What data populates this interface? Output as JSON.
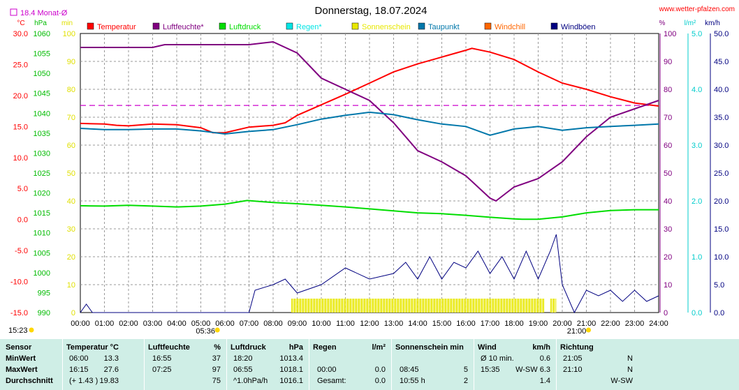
{
  "header": {
    "title": "Donnerstag, 18.07.2024",
    "site": "www.wetter-pfalzen.com",
    "monthly_avg": "18.4 Monat-Ø"
  },
  "axis_units": {
    "temp": "°C",
    "pressure": "hPa",
    "sun": "min",
    "humidity": "%",
    "rain": "l/m²",
    "wind": "km/h"
  },
  "legend": [
    {
      "name": "Temperatur",
      "color": "#ff0000"
    },
    {
      "name": "Luftfeuchte*",
      "color": "#800080"
    },
    {
      "name": "Luftdruck",
      "color": "#00dd00"
    },
    {
      "name": "Regen*",
      "color": "#00e5e5"
    },
    {
      "name": "Sonnenschein",
      "color": "#e8e800"
    },
    {
      "name": "Taupunkt",
      "color": "#0077aa"
    },
    {
      "name": "Windchill",
      "color": "#ff6600"
    },
    {
      "name": "Windböen",
      "color": "#000080"
    }
  ],
  "sun_events": {
    "sunrise": "05:36",
    "sunset": "21:00",
    "now": "15:23"
  },
  "chart_data": {
    "type": "line",
    "title": "Donnerstag, 18.07.2024",
    "x_ticks": [
      "00:00",
      "01:00",
      "02:00",
      "03:00",
      "04:00",
      "05:00",
      "06:00",
      "07:00",
      "08:00",
      "09:00",
      "10:00",
      "11:00",
      "12:00",
      "13:00",
      "14:00",
      "15:00",
      "16:00",
      "17:00",
      "18:00",
      "19:00",
      "20:00",
      "21:00",
      "22:00",
      "23:00",
      "24:00"
    ],
    "axes": {
      "temp": {
        "label": "°C",
        "range": [
          -15,
          30
        ],
        "ticks": [
          "30.0",
          "25.0",
          "20.0",
          "15.0",
          "10.0",
          "5.0",
          "0.0",
          "-5.0",
          "-10.0",
          "-15.0"
        ]
      },
      "pressure": {
        "label": "hPa",
        "range": [
          990,
          1060
        ],
        "ticks": [
          "1060",
          "1055",
          "1050",
          "1045",
          "1040",
          "1035",
          "1030",
          "1025",
          "1020",
          "1015",
          "1010",
          "1005",
          "1000",
          "995",
          "990"
        ]
      },
      "sun": {
        "label": "min",
        "range": [
          0,
          100
        ],
        "ticks": [
          "100",
          "90",
          "80",
          "70",
          "60",
          "50",
          "40",
          "30",
          "20",
          "10",
          "0"
        ]
      },
      "humidity": {
        "label": "%",
        "range": [
          0,
          100
        ],
        "ticks": [
          "100",
          "90",
          "80",
          "70",
          "60",
          "50",
          "40",
          "30",
          "20",
          "10",
          "0"
        ]
      },
      "rain": {
        "label": "l/m²",
        "range": [
          0,
          5
        ],
        "ticks": [
          "5.0",
          "4.0",
          "3.0",
          "2.0",
          "1.0",
          "0.0"
        ]
      },
      "wind": {
        "label": "km/h",
        "range": [
          0,
          50
        ],
        "ticks": [
          "50.0",
          "45.0",
          "40.0",
          "35.0",
          "30.0",
          "25.0",
          "20.0",
          "15.0",
          "10.0",
          "5.0",
          "0.0"
        ]
      }
    },
    "reference_line": {
      "name": "18.4 Monat-Ø",
      "value": 18.4,
      "axis": "temp"
    },
    "series": [
      {
        "name": "Temperatur",
        "axis": "temp",
        "x": [
          0,
          1,
          1.5,
          2,
          3,
          4,
          5,
          5.5,
          6,
          7,
          8,
          8.5,
          9,
          10,
          11,
          12,
          13,
          14,
          15,
          16,
          16.25,
          17,
          18,
          19,
          20,
          21,
          22,
          23,
          24
        ],
        "y": [
          15.5,
          15.4,
          15.2,
          15.1,
          15.4,
          15.3,
          14.8,
          14.0,
          14.0,
          14.9,
          15.2,
          15.6,
          16.8,
          18.5,
          20.2,
          22.0,
          23.8,
          25.1,
          26.2,
          27.3,
          27.6,
          27.0,
          25.8,
          23.8,
          22.0,
          21.0,
          19.8,
          18.8,
          18.3
        ]
      },
      {
        "name": "Luftfeuchte*",
        "axis": "humidity",
        "x": [
          0,
          3,
          3.5,
          5,
          7,
          8,
          9,
          10,
          11,
          12,
          13,
          14,
          14.5,
          15,
          16,
          17,
          17.25,
          18,
          19,
          20,
          21,
          22,
          23,
          24
        ],
        "y": [
          95,
          95,
          96,
          96,
          96,
          97,
          93,
          84,
          80,
          76,
          68,
          58,
          56,
          54,
          49,
          41,
          40,
          45,
          48,
          54,
          63,
          70,
          73,
          76
        ]
      },
      {
        "name": "Luftdruck",
        "axis": "pressure",
        "x": [
          0,
          1,
          2,
          3,
          4,
          5,
          6,
          6.92,
          8,
          9,
          10,
          11,
          12,
          13,
          14,
          15,
          16,
          17,
          18,
          18.33,
          19,
          20,
          21,
          22,
          23,
          24
        ],
        "y": [
          1016.8,
          1016.7,
          1016.9,
          1016.7,
          1016.5,
          1016.7,
          1017.2,
          1018.1,
          1017.6,
          1017.3,
          1016.9,
          1016.5,
          1016.0,
          1015.5,
          1015.0,
          1014.8,
          1014.4,
          1013.9,
          1013.5,
          1013.4,
          1013.4,
          1014.0,
          1015.0,
          1015.6,
          1015.8,
          1015.8
        ]
      },
      {
        "name": "Taupunkt",
        "axis": "temp",
        "x": [
          0,
          1,
          2,
          3,
          4,
          5,
          6,
          7,
          8,
          9,
          10,
          11,
          12,
          13,
          14,
          15,
          16,
          17,
          18,
          19,
          20,
          21,
          22,
          23,
          24
        ],
        "y": [
          14.7,
          14.5,
          14.5,
          14.6,
          14.6,
          14.3,
          13.8,
          14.2,
          14.5,
          15.3,
          16.2,
          16.8,
          17.3,
          16.9,
          16.1,
          15.4,
          15.0,
          13.6,
          14.6,
          15.0,
          14.4,
          14.8,
          15.0,
          15.2,
          15.4
        ]
      },
      {
        "name": "Windböen",
        "axis": "wind",
        "x": [
          0,
          0.25,
          0.5,
          1,
          5,
          6,
          7,
          7.25,
          8,
          8.5,
          9,
          10,
          11,
          12,
          13,
          13.5,
          14,
          14.5,
          15,
          15.5,
          16,
          16.5,
          17,
          17.5,
          18,
          18.5,
          19,
          19.5,
          19.75,
          20,
          20.5,
          21,
          21.5,
          22,
          22.5,
          23,
          23.5,
          24
        ],
        "y": [
          0,
          1.5,
          0,
          0,
          0,
          0,
          0,
          4,
          5,
          6,
          3.5,
          5,
          8,
          6,
          7,
          9,
          6,
          10,
          6,
          9,
          8,
          11,
          7,
          10,
          6,
          11,
          6,
          11,
          14,
          5,
          0,
          4,
          3,
          4,
          2,
          4,
          2,
          3
        ]
      },
      {
        "name": "Sonnenschein",
        "axis": "sun",
        "type": "bar",
        "x": [
          8.75,
          19.25,
          19.5,
          19.75
        ],
        "y": [
          5,
          5,
          5,
          0
        ]
      }
    ]
  },
  "table": {
    "columns": [
      {
        "title": "Sensor",
        "unit": ""
      },
      {
        "title": "Temperatur",
        "unit": "°C"
      },
      {
        "title": "Luftfeuchte",
        "unit": "%"
      },
      {
        "title": "Luftdruck",
        "unit": "hPa"
      },
      {
        "title": "Regen",
        "unit": "l/m²"
      },
      {
        "title": "Sonnenschein min",
        "unit": ""
      },
      {
        "title": "Wind",
        "unit": "km/h"
      },
      {
        "title": "Richtung",
        "unit": ""
      }
    ],
    "rows": [
      {
        "label": "MinWert",
        "temp_t": "06:00",
        "temp_v": "13.3",
        "hum_t": "16:55",
        "hum_v": "37",
        "pres_t": "18:20",
        "pres_v": "1013.4",
        "rain_t": "",
        "rain_v": "",
        "sun_t": "",
        "sun_v": "",
        "wind_t": "Ø 10 min.",
        "wind_v": "0.6",
        "dir_t": "21:05",
        "dir_v": "N"
      },
      {
        "label": "MaxWert",
        "temp_t": "16:15",
        "temp_v": "27.6",
        "hum_t": "07:25",
        "hum_v": "97",
        "pres_t": "06:55",
        "pres_v": "1018.1",
        "rain_t": "00:00",
        "rain_v": "0.0",
        "sun_t": "08:45",
        "sun_v": "5",
        "wind_t": "15:35",
        "wind_v": "W-SW 6.3",
        "dir_t": "21:10",
        "dir_v": "N"
      },
      {
        "label": "Durchschnitt",
        "temp_t": "(+ 1.43 )",
        "temp_v": "19.83",
        "hum_t": "",
        "hum_v": "75",
        "pres_t": "^1.0hPa/h",
        "pres_v": "1016.1",
        "rain_t": "Gesamt:",
        "rain_v": "0.0",
        "sun_t": "10:55 h",
        "sun_v": "2",
        "wind_t": "",
        "wind_v": "1.4",
        "dir_t": "",
        "dir_v": "W-SW"
      }
    ]
  }
}
